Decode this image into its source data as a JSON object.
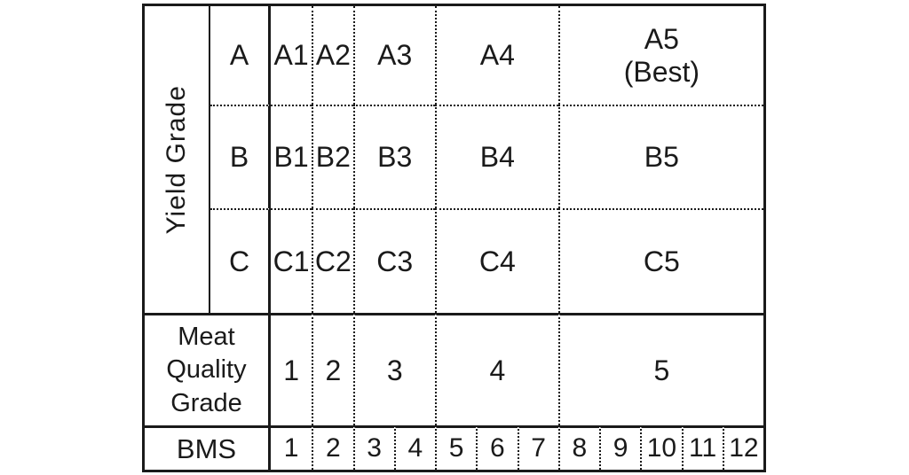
{
  "table": {
    "row_axis_label": "Yield Grade",
    "yield_rows": [
      {
        "grade": "A",
        "cells": [
          {
            "label": "A1"
          },
          {
            "label": "A2"
          },
          {
            "label": "A3"
          },
          {
            "label": "A4"
          },
          {
            "label": "A5",
            "note": "(Best)"
          }
        ]
      },
      {
        "grade": "B",
        "cells": [
          {
            "label": "B1"
          },
          {
            "label": "B2"
          },
          {
            "label": "B3"
          },
          {
            "label": "B4"
          },
          {
            "label": "B5"
          }
        ]
      },
      {
        "grade": "C",
        "cells": [
          {
            "label": "C1"
          },
          {
            "label": "C2"
          },
          {
            "label": "C3"
          },
          {
            "label": "C4"
          },
          {
            "label": "C5"
          }
        ]
      }
    ],
    "meat_quality": {
      "label_line1": "Meat",
      "label_line2": "Quality",
      "label_line3": "Grade",
      "values": [
        "1",
        "2",
        "3",
        "4",
        "5"
      ]
    },
    "bms": {
      "label": "BMS",
      "values": [
        "1",
        "2",
        "3",
        "4",
        "5",
        "6",
        "7",
        "8",
        "9",
        "10",
        "11",
        "12"
      ]
    },
    "colors": {
      "line": "#1a1a1a",
      "text": "#1a1a1a",
      "background": "#ffffff"
    }
  }
}
